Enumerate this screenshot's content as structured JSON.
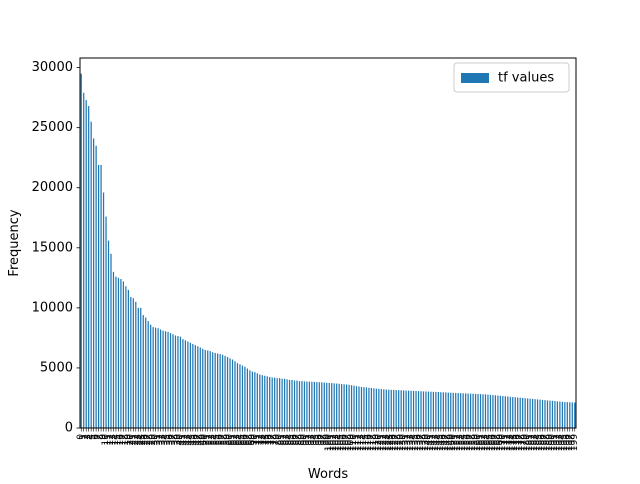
{
  "chart_data": {
    "type": "bar",
    "title": "",
    "xlabel": "Words",
    "ylabel": "Frequency",
    "ylim": [
      0,
      30800
    ],
    "yticks": [
      0,
      5000,
      10000,
      15000,
      20000,
      25000,
      30000
    ],
    "legend": {
      "position": "top-right",
      "entries": [
        "tf values"
      ]
    },
    "grid": false,
    "colors": {
      "bar": "#1f77b4",
      "axis": "#000000",
      "legend_border": "#cccccc"
    },
    "categories": [
      "0",
      "1",
      "2",
      "3",
      "4",
      "5",
      "6",
      "7",
      "8",
      "9",
      "10",
      "11",
      "12",
      "13",
      "14",
      "15",
      "16",
      "17",
      "18",
      "19",
      "20",
      "21",
      "22",
      "23",
      "24",
      "25",
      "26",
      "27",
      "28",
      "29",
      "30",
      "31",
      "32",
      "33",
      "34",
      "35",
      "36",
      "37",
      "38",
      "39",
      "40",
      "41",
      "42",
      "43",
      "44",
      "45",
      "46",
      "47",
      "48",
      "49",
      "50",
      "51",
      "52",
      "53",
      "54",
      "55",
      "56",
      "57",
      "58",
      "59",
      "60",
      "61",
      "62",
      "63",
      "64",
      "65",
      "66",
      "67",
      "68",
      "69",
      "70",
      "71",
      "72",
      "73",
      "74",
      "75",
      "76",
      "77",
      "78",
      "79",
      "80",
      "81",
      "82",
      "83",
      "84",
      "85",
      "86",
      "87",
      "88",
      "89",
      "90",
      "91",
      "92",
      "93",
      "94",
      "95",
      "96",
      "97",
      "98",
      "99",
      "100",
      "101",
      "102",
      "103",
      "104",
      "105",
      "106",
      "107",
      "108",
      "109",
      "110",
      "111",
      "112",
      "113",
      "114",
      "115",
      "116",
      "117",
      "118",
      "119",
      "120",
      "121",
      "122",
      "123",
      "124",
      "125",
      "126",
      "127",
      "128",
      "129",
      "130",
      "131",
      "132",
      "133",
      "134",
      "135",
      "136",
      "137",
      "138",
      "139",
      "140",
      "141",
      "142",
      "143",
      "144",
      "145",
      "146",
      "147",
      "148",
      "149",
      "150",
      "151",
      "152",
      "153",
      "154",
      "155",
      "156",
      "157",
      "158",
      "159",
      "160",
      "161",
      "162",
      "163",
      "164",
      "165",
      "166",
      "167",
      "168",
      "169",
      "170",
      "171",
      "172",
      "173",
      "174",
      "175",
      "176",
      "177",
      "178",
      "179",
      "180",
      "181",
      "182",
      "183",
      "184",
      "185",
      "186",
      "187",
      "188",
      "189",
      "190",
      "191",
      "192",
      "193",
      "194",
      "195",
      "196",
      "197",
      "198",
      "199"
    ],
    "series": [
      {
        "name": "tf values",
        "values": [
          29500,
          27900,
          27300,
          26800,
          25500,
          24100,
          23500,
          21900,
          21900,
          19600,
          17600,
          15600,
          14500,
          13000,
          12600,
          12500,
          12400,
          12200,
          11800,
          11500,
          10900,
          10800,
          10500,
          10000,
          10000,
          9400,
          9200,
          8900,
          8600,
          8400,
          8350,
          8300,
          8200,
          8100,
          8050,
          8000,
          7900,
          7800,
          7700,
          7650,
          7600,
          7400,
          7300,
          7200,
          7100,
          7000,
          6900,
          6800,
          6700,
          6600,
          6500,
          6450,
          6400,
          6300,
          6250,
          6200,
          6150,
          6100,
          6000,
          5900,
          5800,
          5700,
          5550,
          5400,
          5300,
          5200,
          5100,
          4950,
          4800,
          4700,
          4650,
          4550,
          4450,
          4400,
          4350,
          4300,
          4250,
          4200,
          4200,
          4150,
          4150,
          4100,
          4100,
          4050,
          4000,
          4000,
          3950,
          3950,
          3900,
          3900,
          3880,
          3870,
          3860,
          3850,
          3840,
          3820,
          3810,
          3800,
          3780,
          3760,
          3750,
          3740,
          3720,
          3700,
          3680,
          3660,
          3640,
          3620,
          3600,
          3560,
          3520,
          3480,
          3450,
          3420,
          3400,
          3380,
          3350,
          3330,
          3300,
          3280,
          3260,
          3240,
          3220,
          3200,
          3190,
          3180,
          3170,
          3160,
          3150,
          3140,
          3130,
          3120,
          3110,
          3100,
          3090,
          3080,
          3070,
          3060,
          3050,
          3040,
          3030,
          3020,
          3010,
          3000,
          2990,
          2980,
          2970,
          2960,
          2950,
          2940,
          2930,
          2920,
          2910,
          2900,
          2890,
          2880,
          2870,
          2860,
          2850,
          2840,
          2830,
          2820,
          2810,
          2800,
          2780,
          2760,
          2740,
          2720,
          2700,
          2680,
          2660,
          2640,
          2620,
          2600,
          2580,
          2560,
          2540,
          2520,
          2500,
          2480,
          2460,
          2440,
          2420,
          2400,
          2380,
          2360,
          2340,
          2320,
          2300,
          2280,
          2260,
          2240,
          2220,
          2200,
          2180,
          2160,
          2150,
          2140,
          2130,
          2120
        ]
      }
    ]
  }
}
